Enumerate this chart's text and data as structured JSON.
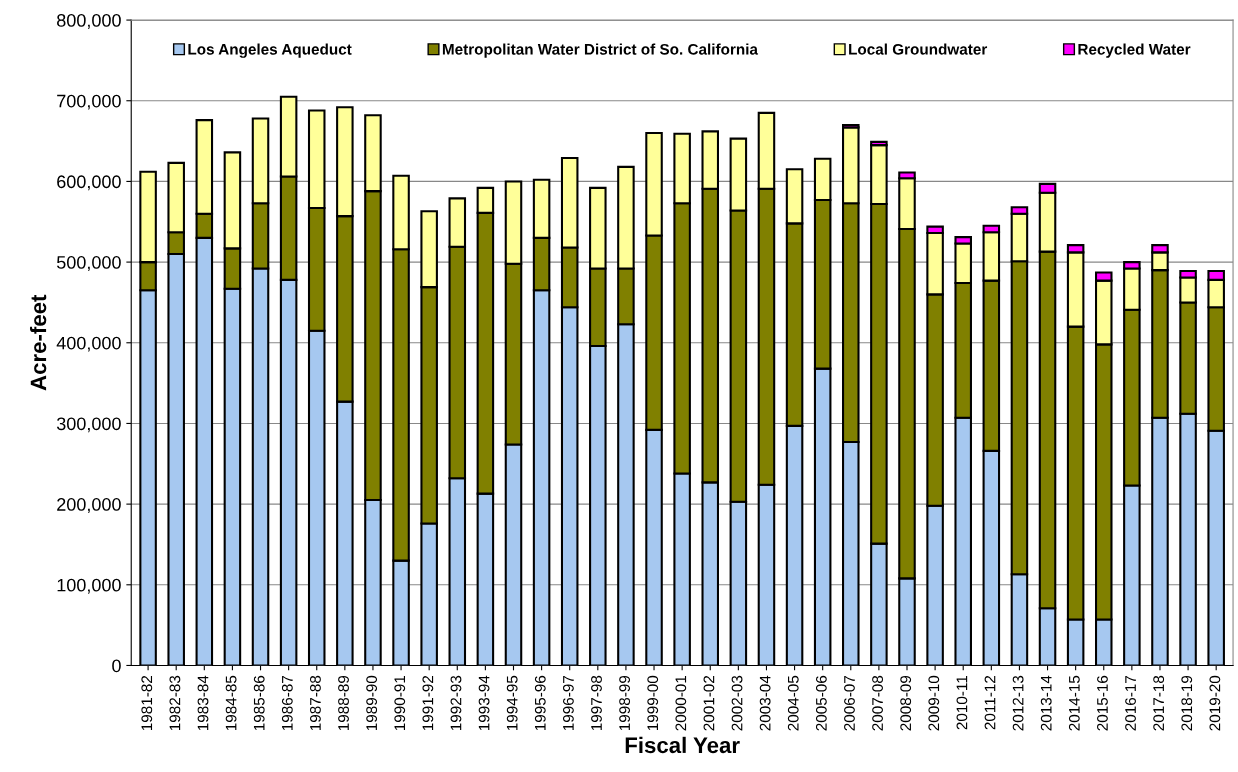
{
  "chart_data": {
    "type": "bar",
    "stacked": true,
    "xlabel": "Fiscal Year",
    "ylabel": "Acre-feet",
    "categories": [
      "1981-82",
      "1982-83",
      "1983-84",
      "1984-85",
      "1985-86",
      "1986-87",
      "1987-88",
      "1988-89",
      "1989-90",
      "1990-91",
      "1991-92",
      "1992-93",
      "1993-94",
      "1994-95",
      "1995-96",
      "1996-97",
      "1997-98",
      "1998-99",
      "1999-00",
      "2000-01",
      "2001-02",
      "2002-03",
      "2003-04",
      "2004-05",
      "2005-06",
      "2006-07",
      "2007-08",
      "2008-09",
      "2009-10",
      "2010-11",
      "2011-12",
      "2012-13",
      "2013-14",
      "2014-15",
      "2015-16",
      "2016-17",
      "2017-18",
      "2018-19",
      "2019-20"
    ],
    "series": [
      {
        "name": "Los Angeles Aqueduct",
        "color": "#a6c8f0",
        "values": [
          465000,
          510000,
          530000,
          467000,
          492000,
          478000,
          415000,
          327000,
          205000,
          130000,
          176000,
          232000,
          213000,
          274000,
          465000,
          444000,
          396000,
          423000,
          292000,
          238000,
          227000,
          203000,
          224000,
          297000,
          368000,
          277000,
          151000,
          108000,
          198000,
          307000,
          266000,
          113000,
          71000,
          57000,
          57000,
          223000,
          307000,
          312000,
          291000
        ]
      },
      {
        "name": "Metropolitan Water District of So. California",
        "color": "#808000",
        "values": [
          35000,
          27000,
          30000,
          50000,
          81000,
          128000,
          152000,
          230000,
          383000,
          386000,
          293000,
          287000,
          348000,
          224000,
          65000,
          74000,
          96000,
          69000,
          241000,
          335000,
          364000,
          361000,
          367000,
          251000,
          209000,
          296000,
          421000,
          433000,
          262000,
          167000,
          211000,
          388000,
          442000,
          363000,
          341000,
          218000,
          183000,
          138000,
          153000
        ]
      },
      {
        "name": "Local Groundwater",
        "color": "#ffff99",
        "values": [
          112000,
          86000,
          116000,
          119000,
          105000,
          99000,
          121000,
          135000,
          94000,
          91000,
          94000,
          60000,
          31000,
          102000,
          72000,
          111000,
          100000,
          126000,
          127000,
          86000,
          71000,
          89000,
          94000,
          67000,
          51000,
          94000,
          73000,
          63000,
          76000,
          49000,
          60000,
          59000,
          73000,
          92000,
          79000,
          51000,
          22000,
          31000,
          34000
        ]
      },
      {
        "name": "Recycled Water",
        "color": "#ff00ff",
        "values": [
          null,
          null,
          null,
          null,
          null,
          null,
          null,
          null,
          null,
          null,
          null,
          null,
          null,
          null,
          null,
          null,
          null,
          null,
          null,
          null,
          null,
          null,
          null,
          null,
          null,
          3000,
          4000,
          7000,
          8000,
          8000,
          8000,
          8000,
          11000,
          9000,
          10000,
          8000,
          9000,
          8000,
          11000
        ]
      }
    ],
    "ylim": [
      0,
      800000
    ],
    "yticks": [
      0,
      {
        "value": 100000,
        "label": "100,000"
      },
      {
        "value": 200000,
        "label": "200,000"
      },
      {
        "value": 300000,
        "label": "300,000"
      },
      {
        "value": 400000,
        "label": "400,000"
      },
      {
        "value": 500000,
        "label": "500,000"
      },
      {
        "value": 600000,
        "label": "600,000"
      },
      {
        "value": 700000,
        "label": "700,000"
      },
      {
        "value": 800000,
        "label": "800,000"
      }
    ],
    "grid": "y",
    "legend": "top"
  }
}
